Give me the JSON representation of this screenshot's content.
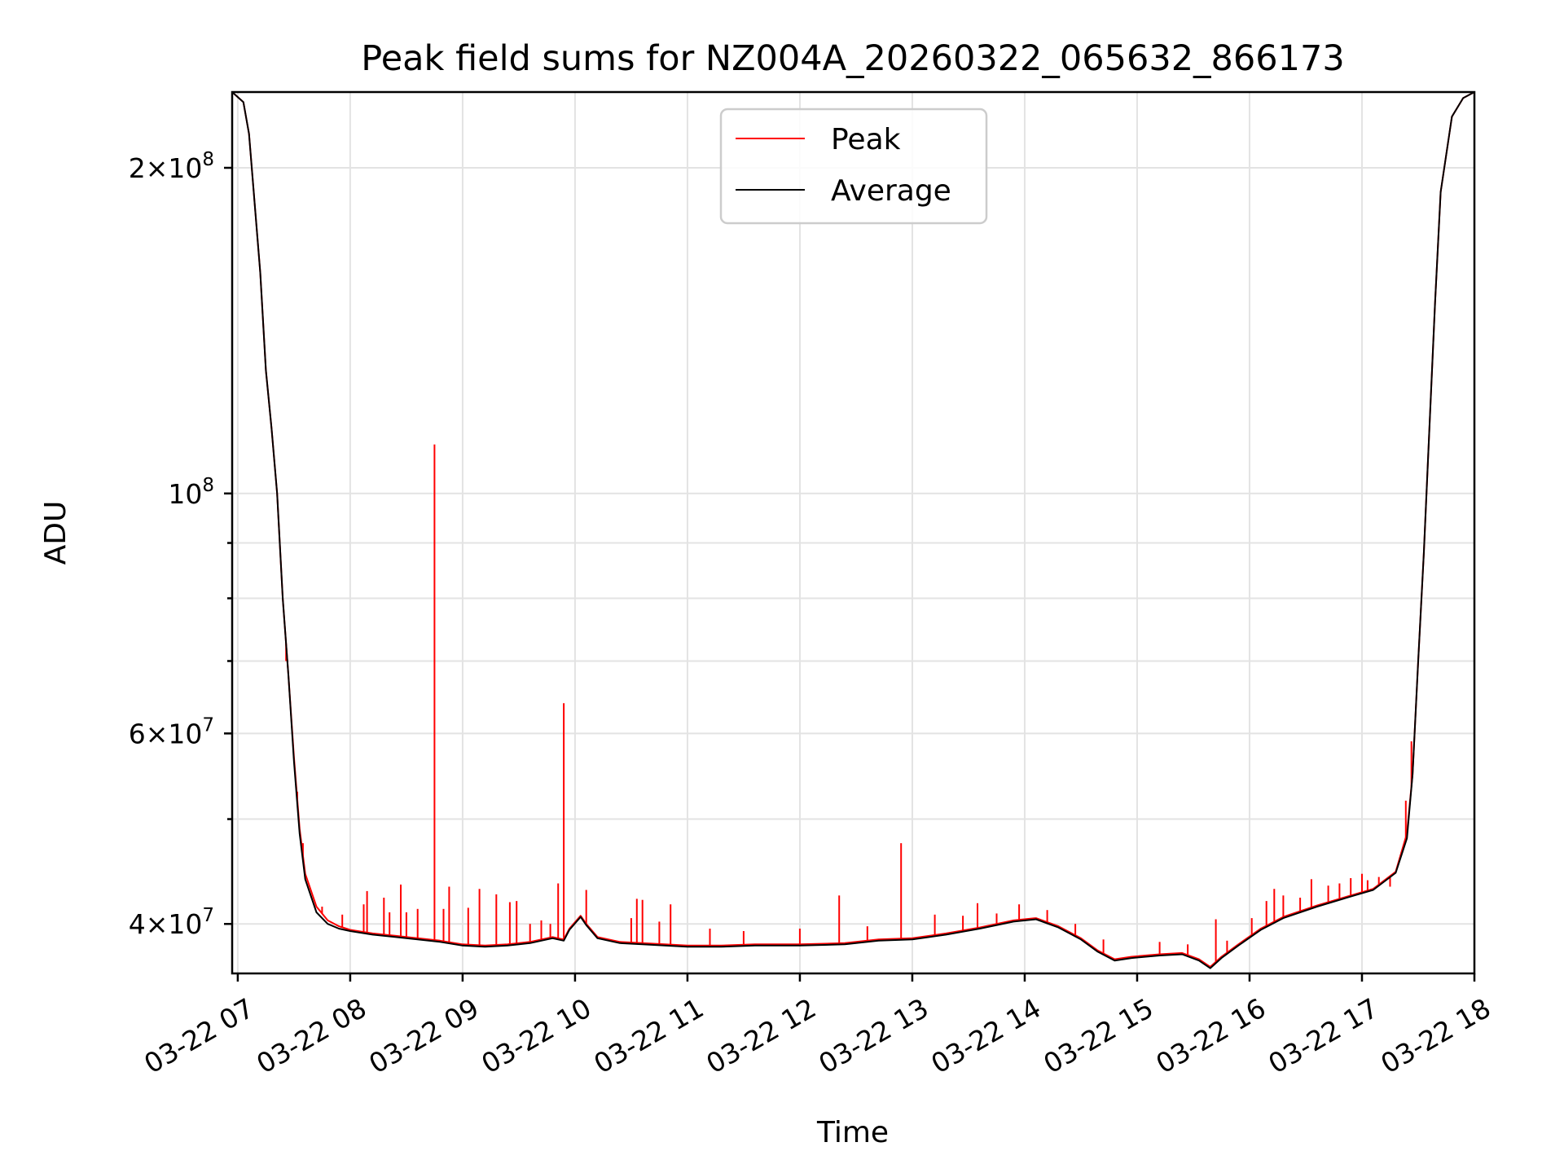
{
  "chart_data": {
    "type": "line",
    "title": "Peak field sums for NZ004A_20260322_065632_866173",
    "xlabel": "Time",
    "ylabel": "ADU",
    "yscale": "log",
    "xlim": [
      6.95,
      18.0
    ],
    "ylim": [
      36000000,
      235000000
    ],
    "grid": true,
    "legend_position": "top-center",
    "x_unit": "hours since 2026-03-22 00:00",
    "x_ticks": [
      {
        "value": 7,
        "label": "03-22 07"
      },
      {
        "value": 8,
        "label": "03-22 08"
      },
      {
        "value": 9,
        "label": "03-22 09"
      },
      {
        "value": 10,
        "label": "03-22 10"
      },
      {
        "value": 11,
        "label": "03-22 11"
      },
      {
        "value": 12,
        "label": "03-22 12"
      },
      {
        "value": 13,
        "label": "03-22 13"
      },
      {
        "value": 14,
        "label": "03-22 14"
      },
      {
        "value": 15,
        "label": "03-22 15"
      },
      {
        "value": 16,
        "label": "03-22 16"
      },
      {
        "value": 17,
        "label": "03-22 17"
      },
      {
        "value": 18,
        "label": "03-22 18"
      }
    ],
    "y_ticks_major": [
      {
        "value": 40000000,
        "mantissa": "4",
        "exp": "7"
      },
      {
        "value": 60000000,
        "mantissa": "6",
        "exp": "7"
      },
      {
        "value": 100000000,
        "mantissa": "",
        "exp": "8"
      },
      {
        "value": 200000000,
        "mantissa": "2",
        "exp": "8"
      }
    ],
    "y_ticks_minor": [
      50000000,
      70000000,
      80000000,
      90000000
    ],
    "series": [
      {
        "name": "Peak",
        "color": "#ff0000",
        "points": [
          [
            6.95,
            235000000
          ],
          [
            7.05,
            230000000
          ],
          [
            7.1,
            215000000
          ],
          [
            7.2,
            160000000
          ],
          [
            7.25,
            130000000
          ],
          [
            7.3,
            115000000
          ],
          [
            7.35,
            100000000
          ],
          [
            7.4,
            80000000
          ],
          [
            7.45,
            68000000
          ],
          [
            7.5,
            57000000
          ],
          [
            7.55,
            49000000
          ],
          [
            7.6,
            44500000
          ],
          [
            7.7,
            41500000
          ],
          [
            7.8,
            40300000
          ],
          [
            7.9,
            39800000
          ],
          [
            8.0,
            39500000
          ],
          [
            8.2,
            39200000
          ],
          [
            8.4,
            39000000
          ],
          [
            8.6,
            38800000
          ],
          [
            8.8,
            38600000
          ],
          [
            9.0,
            38300000
          ],
          [
            9.2,
            38200000
          ],
          [
            9.4,
            38300000
          ],
          [
            9.6,
            38500000
          ],
          [
            9.8,
            38900000
          ],
          [
            9.9,
            38700000
          ],
          [
            9.95,
            39600000
          ],
          [
            10.05,
            40700000
          ],
          [
            10.1,
            40000000
          ],
          [
            10.2,
            38900000
          ],
          [
            10.4,
            38500000
          ],
          [
            10.6,
            38400000
          ],
          [
            10.8,
            38300000
          ],
          [
            11.0,
            38200000
          ],
          [
            11.3,
            38200000
          ],
          [
            11.6,
            38300000
          ],
          [
            12.0,
            38300000
          ],
          [
            12.4,
            38400000
          ],
          [
            12.7,
            38700000
          ],
          [
            13.0,
            38800000
          ],
          [
            13.3,
            39200000
          ],
          [
            13.6,
            39700000
          ],
          [
            13.9,
            40300000
          ],
          [
            14.1,
            40500000
          ],
          [
            14.3,
            39800000
          ],
          [
            14.5,
            38800000
          ],
          [
            14.65,
            37800000
          ],
          [
            14.8,
            37100000
          ],
          [
            14.95,
            37300000
          ],
          [
            15.2,
            37500000
          ],
          [
            15.4,
            37600000
          ],
          [
            15.55,
            37100000
          ],
          [
            15.65,
            36500000
          ],
          [
            15.75,
            37300000
          ],
          [
            15.9,
            38300000
          ],
          [
            16.1,
            39600000
          ],
          [
            16.3,
            40600000
          ],
          [
            16.6,
            41600000
          ],
          [
            16.9,
            42500000
          ],
          [
            17.1,
            43100000
          ],
          [
            17.3,
            44700000
          ],
          [
            17.4,
            48500000
          ],
          [
            17.45,
            55000000
          ],
          [
            17.5,
            70000000
          ],
          [
            17.55,
            88000000
          ],
          [
            17.6,
            115000000
          ],
          [
            17.65,
            150000000
          ],
          [
            17.7,
            190000000
          ],
          [
            17.8,
            223000000
          ],
          [
            17.9,
            232000000
          ],
          [
            18.0,
            235000000
          ]
        ],
        "spikes": [
          [
            7.43,
            70000000
          ],
          [
            7.53,
            53000000
          ],
          [
            7.58,
            47500000
          ],
          [
            7.75,
            41500000
          ],
          [
            7.93,
            40800000
          ],
          [
            8.12,
            41700000
          ],
          [
            8.15,
            42900000
          ],
          [
            8.3,
            42300000
          ],
          [
            8.35,
            41000000
          ],
          [
            8.45,
            43500000
          ],
          [
            8.5,
            41000000
          ],
          [
            8.6,
            41300000
          ],
          [
            8.75,
            111000000
          ],
          [
            8.83,
            41300000
          ],
          [
            8.88,
            43300000
          ],
          [
            9.05,
            41400000
          ],
          [
            9.15,
            43100000
          ],
          [
            9.3,
            42600000
          ],
          [
            9.42,
            41900000
          ],
          [
            9.48,
            42000000
          ],
          [
            9.6,
            40000000
          ],
          [
            9.7,
            40300000
          ],
          [
            9.78,
            40000000
          ],
          [
            9.85,
            43600000
          ],
          [
            9.9,
            64000000
          ],
          [
            10.1,
            43000000
          ],
          [
            10.5,
            40500000
          ],
          [
            10.55,
            42200000
          ],
          [
            10.6,
            42100000
          ],
          [
            10.75,
            40200000
          ],
          [
            10.85,
            41700000
          ],
          [
            11.2,
            39600000
          ],
          [
            11.5,
            39400000
          ],
          [
            12.0,
            39600000
          ],
          [
            12.35,
            42500000
          ],
          [
            12.6,
            39800000
          ],
          [
            12.9,
            47500000
          ],
          [
            13.2,
            40800000
          ],
          [
            13.45,
            40700000
          ],
          [
            13.58,
            41800000
          ],
          [
            13.75,
            40900000
          ],
          [
            13.95,
            41700000
          ],
          [
            14.2,
            41200000
          ],
          [
            14.45,
            40000000
          ],
          [
            14.7,
            38700000
          ],
          [
            15.2,
            38500000
          ],
          [
            15.45,
            38300000
          ],
          [
            15.7,
            40400000
          ],
          [
            15.8,
            38600000
          ],
          [
            16.02,
            40500000
          ],
          [
            16.15,
            42000000
          ],
          [
            16.22,
            43100000
          ],
          [
            16.3,
            42500000
          ],
          [
            16.45,
            42300000
          ],
          [
            16.55,
            44000000
          ],
          [
            16.7,
            43400000
          ],
          [
            16.8,
            43600000
          ],
          [
            16.9,
            44100000
          ],
          [
            17.0,
            44500000
          ],
          [
            17.05,
            43900000
          ],
          [
            17.15,
            44200000
          ],
          [
            17.25,
            43300000
          ],
          [
            17.35,
            46500000
          ],
          [
            17.39,
            52000000
          ],
          [
            17.44,
            59000000
          ]
        ]
      },
      {
        "name": "Average",
        "color": "#000000",
        "points": [
          [
            6.95,
            235000000
          ],
          [
            7.05,
            230000000
          ],
          [
            7.1,
            215000000
          ],
          [
            7.2,
            160000000
          ],
          [
            7.25,
            130000000
          ],
          [
            7.3,
            115000000
          ],
          [
            7.35,
            100000000
          ],
          [
            7.4,
            80000000
          ],
          [
            7.45,
            68000000
          ],
          [
            7.5,
            56500000
          ],
          [
            7.55,
            48500000
          ],
          [
            7.6,
            44000000
          ],
          [
            7.7,
            41000000
          ],
          [
            7.8,
            40000000
          ],
          [
            7.9,
            39600000
          ],
          [
            8.0,
            39400000
          ],
          [
            8.2,
            39100000
          ],
          [
            8.4,
            38900000
          ],
          [
            8.6,
            38700000
          ],
          [
            8.8,
            38500000
          ],
          [
            9.0,
            38200000
          ],
          [
            9.2,
            38100000
          ],
          [
            9.4,
            38200000
          ],
          [
            9.6,
            38400000
          ],
          [
            9.8,
            38800000
          ],
          [
            9.9,
            38600000
          ],
          [
            9.95,
            39500000
          ],
          [
            10.05,
            40600000
          ],
          [
            10.1,
            39900000
          ],
          [
            10.2,
            38800000
          ],
          [
            10.4,
            38400000
          ],
          [
            10.6,
            38300000
          ],
          [
            10.8,
            38200000
          ],
          [
            11.0,
            38100000
          ],
          [
            11.3,
            38100000
          ],
          [
            11.6,
            38200000
          ],
          [
            12.0,
            38200000
          ],
          [
            12.4,
            38300000
          ],
          [
            12.7,
            38600000
          ],
          [
            13.0,
            38700000
          ],
          [
            13.3,
            39100000
          ],
          [
            13.6,
            39600000
          ],
          [
            13.9,
            40200000
          ],
          [
            14.1,
            40400000
          ],
          [
            14.3,
            39700000
          ],
          [
            14.5,
            38700000
          ],
          [
            14.65,
            37700000
          ],
          [
            14.8,
            37000000
          ],
          [
            14.95,
            37200000
          ],
          [
            15.2,
            37400000
          ],
          [
            15.4,
            37500000
          ],
          [
            15.55,
            37000000
          ],
          [
            15.65,
            36400000
          ],
          [
            15.75,
            37200000
          ],
          [
            15.9,
            38200000
          ],
          [
            16.1,
            39500000
          ],
          [
            16.3,
            40500000
          ],
          [
            16.6,
            41500000
          ],
          [
            16.9,
            42400000
          ],
          [
            17.1,
            43000000
          ],
          [
            17.3,
            44600000
          ],
          [
            17.4,
            48000000
          ],
          [
            17.45,
            55000000
          ],
          [
            17.5,
            70000000
          ],
          [
            17.55,
            88000000
          ],
          [
            17.6,
            115000000
          ],
          [
            17.65,
            150000000
          ],
          [
            17.7,
            190000000
          ],
          [
            17.8,
            223000000
          ],
          [
            17.9,
            232000000
          ],
          [
            18.0,
            235000000
          ]
        ]
      }
    ]
  }
}
